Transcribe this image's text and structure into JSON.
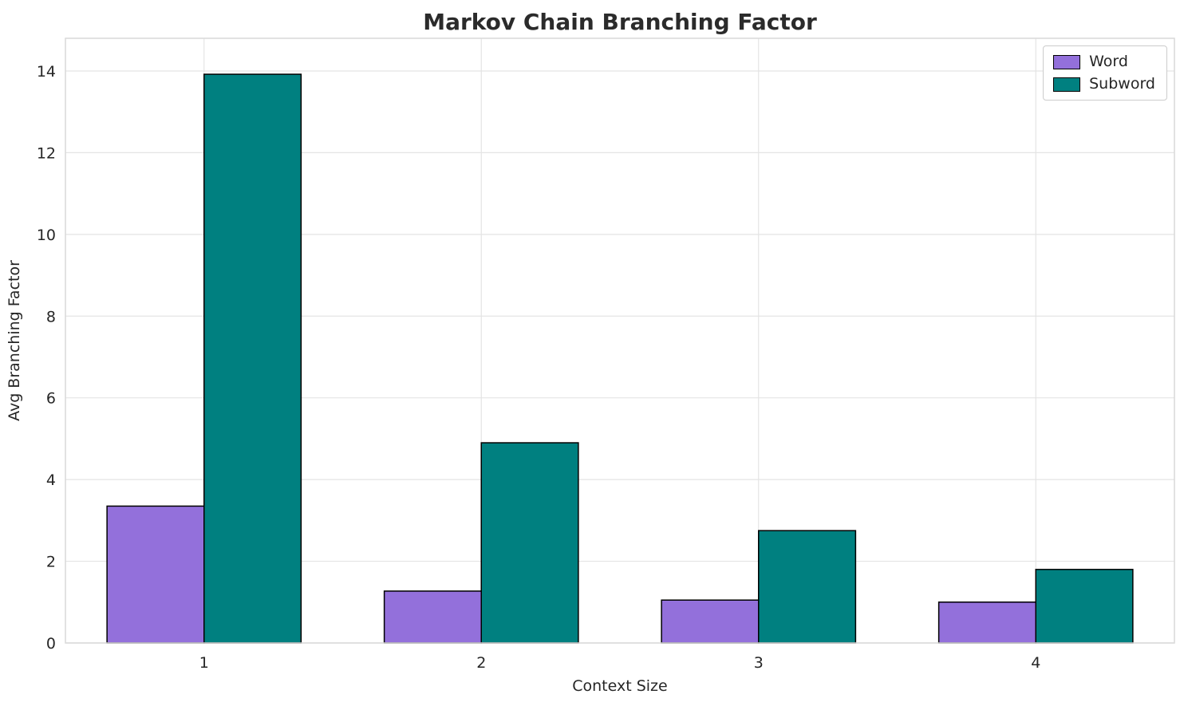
{
  "chart_data": {
    "type": "bar",
    "title": "Markov Chain Branching Factor",
    "xlabel": "Context Size",
    "ylabel": "Avg Branching Factor",
    "categories": [
      "1",
      "2",
      "3",
      "4"
    ],
    "series": [
      {
        "name": "Word",
        "color": "#9370DB",
        "values": [
          3.35,
          1.27,
          1.05,
          1.0
        ]
      },
      {
        "name": "Subword",
        "color": "#008080",
        "values": [
          13.92,
          4.9,
          2.75,
          1.8
        ]
      }
    ],
    "ylim": [
      0,
      14.8
    ],
    "yticks": [
      0,
      2,
      4,
      6,
      8,
      10,
      12,
      14
    ],
    "bar_width_fraction": 0.35,
    "bar_edge_color": "#000000",
    "grid": true,
    "grid_color": "#e4e4e4",
    "axes_border_color": "#d9d9d9",
    "text_color": "#262626",
    "legend_position": "upper right"
  }
}
